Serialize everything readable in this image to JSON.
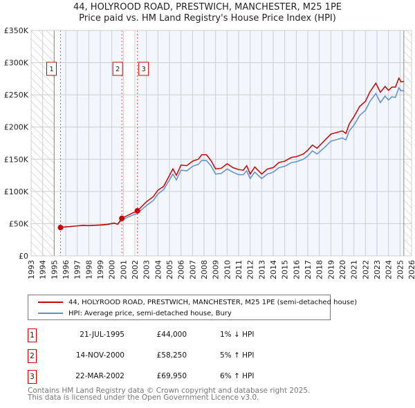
{
  "chart_data": {
    "type": "line",
    "title": "44, HOLYROOD ROAD, PRESTWICH, MANCHESTER, M25 1PE",
    "subtitle": "Price paid vs. HM Land Registry's House Price Index (HPI)",
    "xlim": [
      1993,
      2026
    ],
    "ylim": [
      0,
      350000
    ],
    "x_ticks": [
      "1993",
      "1994",
      "1995",
      "1996",
      "1997",
      "1998",
      "1999",
      "2000",
      "2001",
      "2002",
      "2003",
      "2004",
      "2005",
      "2006",
      "2007",
      "2008",
      "2009",
      "2010",
      "2011",
      "2012",
      "2013",
      "2014",
      "2015",
      "2016",
      "2017",
      "2018",
      "2019",
      "2020",
      "2021",
      "2022",
      "2023",
      "2024",
      "2025",
      "2026"
    ],
    "y_ticks": [
      {
        "v": 0,
        "label": "£0"
      },
      {
        "v": 50000,
        "label": "£50K"
      },
      {
        "v": 100000,
        "label": "£100K"
      },
      {
        "v": 150000,
        "label": "£150K"
      },
      {
        "v": 200000,
        "label": "£200K"
      },
      {
        "v": 250000,
        "label": "£250K"
      },
      {
        "v": 300000,
        "label": "£300K"
      },
      {
        "v": 350000,
        "label": "£350K"
      }
    ],
    "grid": true,
    "hatched_before": 1995,
    "hatched_after": 2025.33,
    "series": [
      {
        "name": "44, HOLYROOD ROAD, PRESTWICH, MANCHESTER, M25 1PE (semi-detached house)",
        "color": "#cc0000",
        "points": [
          [
            1995.55,
            44000
          ],
          [
            1996,
            45000
          ],
          [
            1997,
            46500
          ],
          [
            1997.5,
            47500
          ],
          [
            1998,
            47000
          ],
          [
            1999,
            48000
          ],
          [
            1999.6,
            49000
          ],
          [
            2000.2,
            51000
          ],
          [
            2000.5,
            49000
          ],
          [
            2000.87,
            58250
          ],
          [
            2001.5,
            64000
          ],
          [
            2002.22,
            69950
          ],
          [
            2003,
            84000
          ],
          [
            2003.6,
            92000
          ],
          [
            2004,
            102000
          ],
          [
            2004.5,
            108000
          ],
          [
            2005,
            125000
          ],
          [
            2005.3,
            135000
          ],
          [
            2005.6,
            125000
          ],
          [
            2006,
            141000
          ],
          [
            2006.5,
            140000
          ],
          [
            2007,
            147000
          ],
          [
            2007.5,
            150000
          ],
          [
            2007.8,
            157000
          ],
          [
            2008.2,
            157000
          ],
          [
            2008.6,
            148000
          ],
          [
            2009,
            135000
          ],
          [
            2009.5,
            136000
          ],
          [
            2010,
            143000
          ],
          [
            2010.5,
            137000
          ],
          [
            2011,
            134000
          ],
          [
            2011.4,
            133000
          ],
          [
            2011.7,
            140000
          ],
          [
            2012,
            127000
          ],
          [
            2012.4,
            138000
          ],
          [
            2013,
            127000
          ],
          [
            2013.5,
            135000
          ],
          [
            2014,
            137000
          ],
          [
            2014.5,
            145000
          ],
          [
            2015,
            147000
          ],
          [
            2015.6,
            153000
          ],
          [
            2016,
            154000
          ],
          [
            2016.6,
            158000
          ],
          [
            2017,
            164000
          ],
          [
            2017.4,
            172000
          ],
          [
            2017.8,
            167000
          ],
          [
            2018.5,
            180000
          ],
          [
            2019,
            189000
          ],
          [
            2020,
            194000
          ],
          [
            2020.3,
            190000
          ],
          [
            2020.6,
            205000
          ],
          [
            2021,
            216000
          ],
          [
            2021.5,
            232000
          ],
          [
            2022,
            240000
          ],
          [
            2022.4,
            255000
          ],
          [
            2022.9,
            268000
          ],
          [
            2023.3,
            254000
          ],
          [
            2023.7,
            263000
          ],
          [
            2024,
            257000
          ],
          [
            2024.3,
            262000
          ],
          [
            2024.6,
            262000
          ],
          [
            2024.9,
            276000
          ],
          [
            2025.1,
            270000
          ],
          [
            2025.33,
            271000
          ]
        ]
      },
      {
        "name": "HPI: Average price, semi-detached house, Bury",
        "color": "#5b8fd0",
        "points": [
          [
            1995.55,
            44500
          ],
          [
            1996,
            45000
          ],
          [
            1997,
            46500
          ],
          [
            1997.5,
            47000
          ],
          [
            1998,
            47000
          ],
          [
            1999,
            47500
          ],
          [
            1999.6,
            48500
          ],
          [
            2000.2,
            50500
          ],
          [
            2000.5,
            49500
          ],
          [
            2000.87,
            55500
          ],
          [
            2001.5,
            61000
          ],
          [
            2002.22,
            66000
          ],
          [
            2003,
            78000
          ],
          [
            2003.6,
            86000
          ],
          [
            2004,
            96000
          ],
          [
            2004.5,
            103000
          ],
          [
            2005,
            118000
          ],
          [
            2005.3,
            127000
          ],
          [
            2005.6,
            118000
          ],
          [
            2006,
            133000
          ],
          [
            2006.5,
            132000
          ],
          [
            2007,
            139000
          ],
          [
            2007.5,
            142000
          ],
          [
            2007.8,
            148000
          ],
          [
            2008.2,
            148000
          ],
          [
            2008.6,
            140000
          ],
          [
            2009,
            127000
          ],
          [
            2009.5,
            128000
          ],
          [
            2010,
            135000
          ],
          [
            2010.5,
            130000
          ],
          [
            2011,
            126000
          ],
          [
            2011.4,
            126000
          ],
          [
            2011.7,
            132000
          ],
          [
            2012,
            120000
          ],
          [
            2012.4,
            130000
          ],
          [
            2013,
            120000
          ],
          [
            2013.5,
            127000
          ],
          [
            2014,
            130000
          ],
          [
            2014.5,
            137000
          ],
          [
            2015,
            139000
          ],
          [
            2015.6,
            145000
          ],
          [
            2016,
            146000
          ],
          [
            2016.6,
            150000
          ],
          [
            2017,
            155000
          ],
          [
            2017.4,
            163000
          ],
          [
            2017.8,
            158000
          ],
          [
            2018.5,
            169000
          ],
          [
            2019,
            178000
          ],
          [
            2020,
            183000
          ],
          [
            2020.3,
            180000
          ],
          [
            2020.6,
            194000
          ],
          [
            2021,
            203000
          ],
          [
            2021.5,
            218000
          ],
          [
            2022,
            226000
          ],
          [
            2022.4,
            240000
          ],
          [
            2022.9,
            252000
          ],
          [
            2023.3,
            238000
          ],
          [
            2023.7,
            248000
          ],
          [
            2024,
            242000
          ],
          [
            2024.3,
            247000
          ],
          [
            2024.6,
            246000
          ],
          [
            2024.9,
            261000
          ],
          [
            2025.1,
            256000
          ],
          [
            2025.33,
            257000
          ]
        ]
      }
    ],
    "sales": [
      {
        "n": "1",
        "x": 1995.55,
        "y": 44000,
        "date": "21-JUL-1995",
        "price": "£44,000",
        "hpi": "1% ↓ HPI"
      },
      {
        "n": "2",
        "x": 2000.87,
        "y": 58250,
        "date": "14-NOV-2000",
        "price": "£58,250",
        "hpi": "5% ↑ HPI"
      },
      {
        "n": "3",
        "x": 2002.22,
        "y": 69950,
        "date": "22-MAR-2002",
        "price": "£69,950",
        "hpi": "6% ↑ HPI"
      }
    ]
  },
  "legend": {
    "items": [
      "44, HOLYROOD ROAD, PRESTWICH, MANCHESTER, M25 1PE (semi-detached house)",
      "HPI: Average price, semi-detached house, Bury"
    ]
  },
  "footer": {
    "line1": "Contains HM Land Registry data © Crown copyright and database right 2025.",
    "line2": "This data is licensed under the Open Government Licence v3.0."
  }
}
